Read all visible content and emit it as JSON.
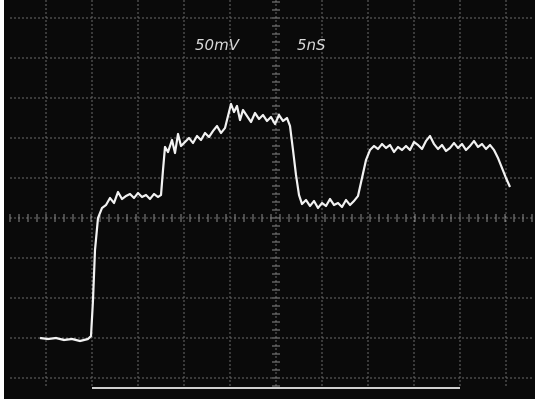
{
  "scale_labels": {
    "volts_per_division": "50mV",
    "time_per_division": "5nS"
  }
}
